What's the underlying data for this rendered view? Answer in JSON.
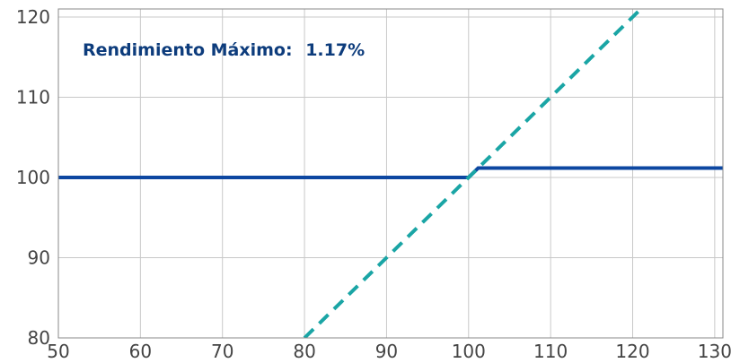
{
  "chart_data": {
    "type": "line",
    "annotation": {
      "label": "Rendimiento Máximo:",
      "value": "1.17%"
    },
    "xlim": [
      50,
      131
    ],
    "ylim": [
      80,
      121
    ],
    "x_ticks": [
      50,
      60,
      70,
      80,
      90,
      100,
      110,
      120,
      130
    ],
    "y_ticks": [
      80,
      90,
      100,
      110,
      120
    ],
    "grid": true,
    "legend": "none",
    "series": [
      {
        "style": "solid",
        "color": "#0d47a1",
        "points": [
          [
            50,
            100
          ],
          [
            100,
            100
          ],
          [
            101.17,
            101.17
          ],
          [
            131,
            101.17
          ]
        ]
      },
      {
        "style": "dashed",
        "color": "#1aa5a5",
        "points": [
          [
            80,
            80
          ],
          [
            121,
            121
          ]
        ]
      }
    ]
  }
}
